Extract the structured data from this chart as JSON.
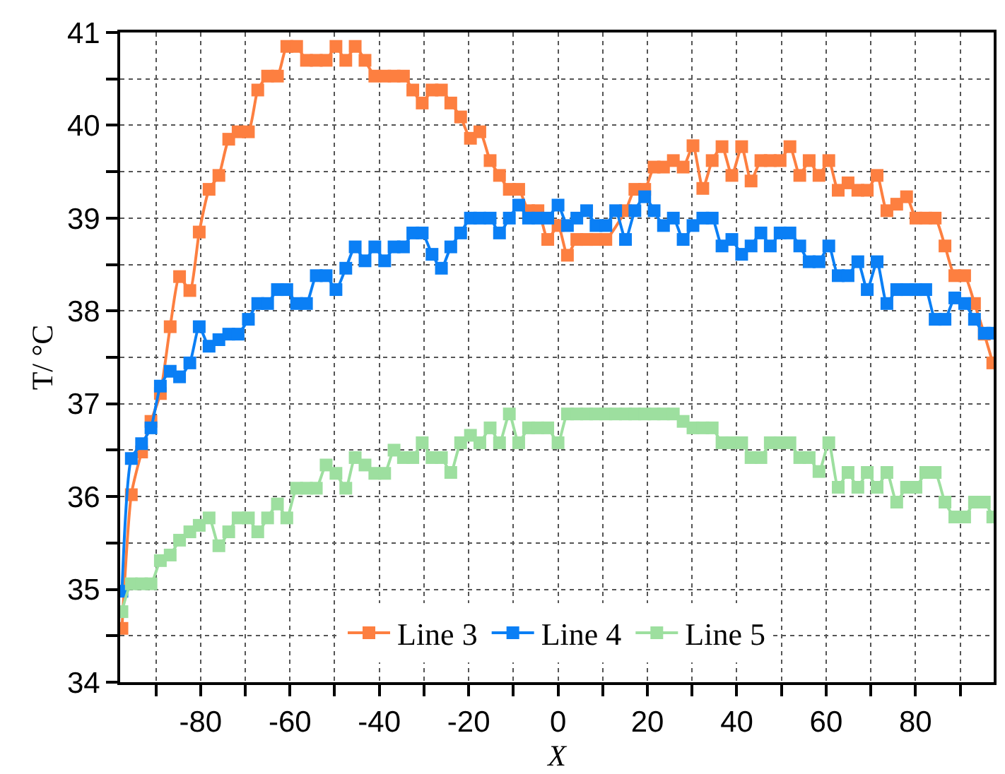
{
  "chart_data": {
    "type": "line",
    "xlabel": "X",
    "ylabel": "T/ °C",
    "x": [
      -97.6,
      -95.5,
      -93.2,
      -91.1,
      -89.0,
      -86.8,
      -84.7,
      -82.4,
      -80.3,
      -78.1,
      -75.9,
      -73.7,
      -71.6,
      -69.3,
      -67.2,
      -65.0,
      -62.8,
      -60.7,
      -58.5,
      -56.3,
      -54.1,
      -51.9,
      -49.7,
      -47.5,
      -45.4,
      -43.2,
      -41.0,
      -38.8,
      -36.7,
      -34.6,
      -32.5,
      -30.4,
      -28.2,
      -26.1,
      -24.0,
      -21.8,
      -19.6,
      -17.5,
      -15.2,
      -13.1,
      -10.9,
      -8.8,
      -6.6,
      -4.5,
      -2.3,
      0,
      2.1,
      4.2,
      6.4,
      8.5,
      10.7,
      12.9,
      15.1,
      17.2,
      19.4,
      21.5,
      23.6,
      25.8,
      28.0,
      30.2,
      32.4,
      34.5,
      36.7,
      38.9,
      41.1,
      43.2,
      45.4,
      47.5,
      49.7,
      51.9,
      54.1,
      56.2,
      58.4,
      60.6,
      62.7,
      64.9,
      67.1,
      69.2,
      71.4,
      73.6,
      75.8,
      78.0,
      80.1,
      82.3,
      84.4,
      86.6,
      88.8,
      91.0,
      93.2,
      95.4,
      97.3
    ],
    "series": [
      {
        "name": "Line 3",
        "color": "#fd7f40",
        "values": [
          34.58,
          36.02,
          36.48,
          36.81,
          37.11,
          37.83,
          38.37,
          38.22,
          38.85,
          39.31,
          39.46,
          39.85,
          39.93,
          39.93,
          40.38,
          40.53,
          40.53,
          40.85,
          40.85,
          40.7,
          40.7,
          40.7,
          40.85,
          40.7,
          40.85,
          40.7,
          40.53,
          40.53,
          40.53,
          40.53,
          40.38,
          40.24,
          40.38,
          40.38,
          40.24,
          40.09,
          39.86,
          39.93,
          39.62,
          39.46,
          39.31,
          39.31,
          39.08,
          39.08,
          38.77,
          38.92,
          38.6,
          38.77,
          38.77,
          38.77,
          38.77,
          null,
          39.08,
          39.31,
          39.31,
          39.55,
          39.55,
          39.62,
          39.55,
          39.78,
          39.32,
          39.62,
          39.77,
          39.46,
          39.77,
          39.4,
          39.62,
          39.62,
          39.62,
          39.77,
          39.46,
          39.62,
          39.46,
          39.62,
          39.3,
          39.38,
          39.3,
          39.3,
          39.46,
          39.08,
          39.15,
          39.23,
          39.0,
          39.0,
          39.0,
          38.7,
          38.38,
          38.38,
          38.08,
          37.75,
          37.44
        ]
      },
      {
        "name": "Line 4",
        "color": "#0a7ff5",
        "values": [
          34.98,
          36.41,
          36.57,
          36.74,
          37.19,
          37.35,
          37.29,
          37.44,
          37.83,
          37.62,
          37.69,
          37.75,
          37.75,
          37.91,
          38.08,
          38.08,
          38.23,
          38.23,
          38.08,
          38.08,
          38.38,
          38.38,
          38.23,
          38.46,
          38.69,
          38.54,
          38.69,
          38.54,
          38.69,
          38.69,
          38.84,
          38.84,
          38.61,
          38.46,
          38.69,
          38.84,
          39.0,
          39.0,
          39.0,
          38.84,
          39.0,
          39.14,
          39.0,
          39.0,
          39.0,
          39.14,
          38.92,
          39.0,
          39.08,
          38.92,
          38.92,
          39.08,
          38.77,
          39.08,
          39.23,
          39.08,
          38.92,
          39.0,
          38.77,
          38.92,
          39.0,
          39.0,
          38.7,
          38.77,
          38.61,
          38.7,
          38.84,
          38.7,
          38.84,
          38.84,
          38.7,
          38.53,
          38.53,
          38.7,
          38.38,
          38.38,
          38.53,
          38.23,
          38.53,
          38.08,
          38.23,
          38.23,
          38.23,
          38.23,
          37.91,
          37.91,
          38.14,
          38.08,
          37.91,
          37.76,
          37.76
        ]
      },
      {
        "name": "Line 5",
        "color": "#9ddf9f",
        "values": [
          34.76,
          35.06,
          35.06,
          35.06,
          35.31,
          35.37,
          35.53,
          35.62,
          35.69,
          35.77,
          35.47,
          35.62,
          35.77,
          35.77,
          35.62,
          35.77,
          35.92,
          35.77,
          36.09,
          36.09,
          36.09,
          36.34,
          36.25,
          36.09,
          36.42,
          36.34,
          36.25,
          36.25,
          36.5,
          36.42,
          36.42,
          36.58,
          36.42,
          36.42,
          36.26,
          36.58,
          36.66,
          36.58,
          36.74,
          36.58,
          36.89,
          36.58,
          36.74,
          36.74,
          36.74,
          36.58,
          36.89,
          36.89,
          36.89,
          36.89,
          36.89,
          36.89,
          36.89,
          36.89,
          36.89,
          36.89,
          36.89,
          36.89,
          36.81,
          36.74,
          36.74,
          36.74,
          36.58,
          36.58,
          36.58,
          36.42,
          36.42,
          36.58,
          36.58,
          36.58,
          36.42,
          36.42,
          36.27,
          36.58,
          36.1,
          36.26,
          36.1,
          36.26,
          36.1,
          36.26,
          35.94,
          36.1,
          36.1,
          36.26,
          36.26,
          35.94,
          35.78,
          35.78,
          35.94,
          35.94,
          35.78
        ]
      }
    ],
    "xlim": [
      -98,
      97.5
    ],
    "ylim": [
      34,
      41
    ],
    "xticks": [
      {
        "value": -90,
        "label": null
      },
      -80,
      {
        "value": -70,
        "label": null
      },
      -60,
      {
        "value": -50,
        "label": null
      },
      -40,
      {
        "value": -30,
        "label": null
      },
      -20,
      {
        "value": -10,
        "label": null
      },
      0,
      {
        "value": 10,
        "label": null
      },
      20,
      {
        "value": 30,
        "label": null
      },
      40,
      {
        "value": 50,
        "label": null
      },
      60,
      {
        "value": 70,
        "label": null
      },
      80,
      {
        "value": 90,
        "label": null
      }
    ],
    "yticks": [
      34,
      {
        "value": 34.5,
        "label": null
      },
      35,
      {
        "value": 35.5,
        "label": null
      },
      36,
      {
        "value": 36.5,
        "label": null
      },
      37,
      {
        "value": 37.5,
        "label": null
      },
      38,
      {
        "value": 38.5,
        "label": null
      },
      39,
      {
        "value": 39.5,
        "label": null
      },
      40,
      {
        "value": 40.5,
        "label": null
      },
      41
    ],
    "grid": true,
    "legend": "bottom",
    "marker": "square",
    "line_style": "solid"
  }
}
